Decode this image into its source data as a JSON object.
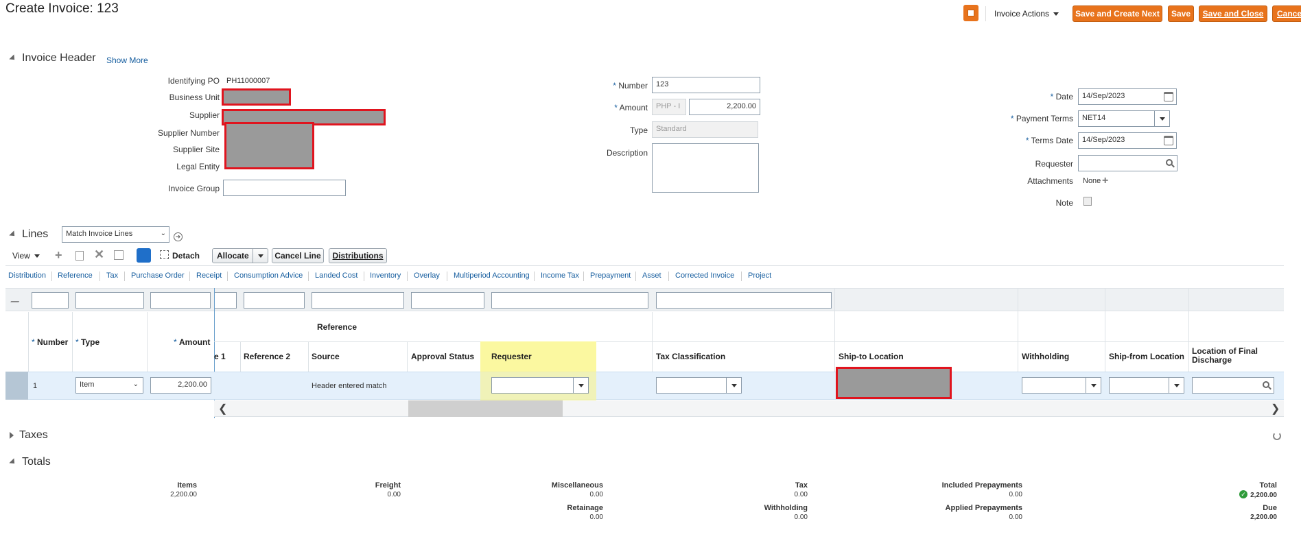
{
  "page": {
    "title": "Create Invoice: 123"
  },
  "toolbar": {
    "actions_menu": "Invoice Actions",
    "save_create_next": "Save and Create Next",
    "save": "Save",
    "save_close": "Save and Close",
    "cancel": "Cancel"
  },
  "header": {
    "section_title": "Invoice Header",
    "show_more": "Show More",
    "identifying_po_label": "Identifying PO",
    "identifying_po_value": "PH11000007",
    "business_unit_label": "Business Unit",
    "supplier_label": "Supplier",
    "supplier_number_label": "Supplier Number",
    "supplier_site_label": "Supplier Site",
    "legal_entity_label": "Legal Entity",
    "invoice_group_label": "Invoice Group",
    "number_label": "Number",
    "number_value": "123",
    "amount_label": "Amount",
    "currency_value": "PHP - I",
    "amount_value": "2,200.00",
    "type_label": "Type",
    "type_value": "Standard",
    "description_label": "Description",
    "date_label": "Date",
    "date_value": "14/Sep/2023",
    "payment_terms_label": "Payment Terms",
    "payment_terms_value": "NET14",
    "terms_date_label": "Terms Date",
    "terms_date_value": "14/Sep/2023",
    "requester_label": "Requester",
    "attachments_label": "Attachments",
    "attachments_value": "None",
    "note_label": "Note"
  },
  "lines": {
    "section_title": "Lines",
    "match_select": "Match Invoice Lines",
    "view_label": "View",
    "detach_label": "Detach",
    "allocate_label": "Allocate",
    "cancel_line_label": "Cancel Line",
    "distributions_label": "Distributions",
    "tabs": [
      "Distribution",
      "Reference",
      "Tax",
      "Purchase Order",
      "Receipt",
      "Consumption Advice",
      "Landed Cost",
      "Inventory",
      "Overlay",
      "Multiperiod Accounting",
      "Income Tax",
      "Prepayment",
      "Asset",
      "Corrected Invoice",
      "Project"
    ],
    "group_header": "Reference",
    "columns": {
      "number": "Number",
      "type": "Type",
      "amount": "Amount",
      "ref1_partial": "e 1",
      "ref2": "Reference 2",
      "source": "Source",
      "approval_status": "Approval Status",
      "requester": "Requester",
      "tax_classification": "Tax Classification",
      "ship_to": "Ship-to Location",
      "withholding": "Withholding",
      "ship_from": "Ship-from Location",
      "final_discharge": "Location of Final Discharge"
    },
    "row": {
      "number": "1",
      "type": "Item",
      "amount": "2,200.00",
      "source": "Header entered match"
    }
  },
  "taxes": {
    "section_title": "Taxes"
  },
  "totals": {
    "section_title": "Totals",
    "items_label": "Items",
    "items_value": "2,200.00",
    "freight_label": "Freight",
    "freight_value": "0.00",
    "misc_label": "Miscellaneous",
    "misc_value": "0.00",
    "retainage_label": "Retainage",
    "retainage_value": "0.00",
    "tax_label": "Tax",
    "tax_value": "0.00",
    "withholding_label": "Withholding",
    "withholding_value": "0.00",
    "included_prepay_label": "Included Prepayments",
    "included_prepay_value": "0.00",
    "applied_prepay_label": "Applied Prepayments",
    "applied_prepay_value": "0.00",
    "total_label": "Total",
    "total_value": "2,200.00",
    "due_label": "Due",
    "due_value": "2,200.00"
  }
}
